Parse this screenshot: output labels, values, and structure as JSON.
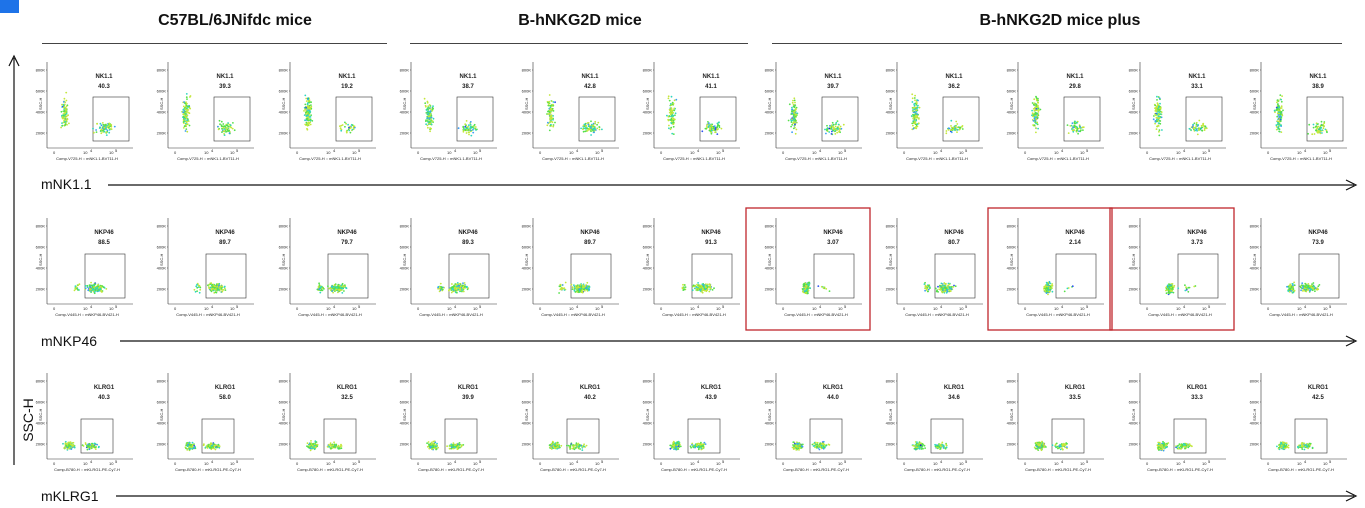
{
  "groups": [
    {
      "title": "C57BL/6JNifdc mice"
    },
    {
      "title": "B-hNKG2D mice"
    },
    {
      "title": "B-hNKG2D mice plus"
    }
  ],
  "y_axis_label": "SSC-H",
  "y_ticks": [
    "800K",
    "600K",
    "400K",
    "200K"
  ],
  "x_ticks": [
    "0",
    "10",
    "4",
    "10",
    "5"
  ],
  "rows": [
    {
      "axis_label": "mNK1.1",
      "gate_name": "NK1.1",
      "x_axis_text": "Comp-V725-H :: mNK1.1-BV711-H",
      "y_axis_text": "SSC-H",
      "values": [
        "40.3",
        "39.3",
        "19.2",
        "38.7",
        "42.8",
        "41.1",
        "39.7",
        "36.2",
        "29.8",
        "33.1",
        "38.9"
      ],
      "highlighted": [
        false,
        false,
        false,
        false,
        false,
        false,
        false,
        false,
        false,
        false,
        false
      ]
    },
    {
      "axis_label": "mNKP46",
      "gate_name": "NKP46",
      "x_axis_text": "Comp-V445-H :: mNKP46-BV421-H",
      "y_axis_text": "SSC-H",
      "values": [
        "88.5",
        "89.7",
        "79.7",
        "89.3",
        "89.7",
        "91.3",
        "3.07",
        "80.7",
        "2.14",
        "3.73",
        "73.9"
      ],
      "highlighted": [
        false,
        false,
        false,
        false,
        false,
        false,
        true,
        false,
        true,
        true,
        false
      ]
    },
    {
      "axis_label": "mKLRG1",
      "gate_name": "KLRG1",
      "x_axis_text": "Comp-B780-H :: mKLRG1-PE-Cy7-H",
      "y_axis_text": "SSC-H",
      "values": [
        "40.3",
        "58.0",
        "32.5",
        "39.9",
        "40.2",
        "43.9",
        "44.0",
        "34.6",
        "33.5",
        "33.3",
        "42.5"
      ],
      "highlighted": [
        false,
        false,
        false,
        false,
        false,
        false,
        false,
        false,
        false,
        false,
        false
      ]
    }
  ],
  "colors": {
    "highlight_border": "#c0272d",
    "axis": "#111111",
    "corner_mark": "#1e73e8"
  }
}
